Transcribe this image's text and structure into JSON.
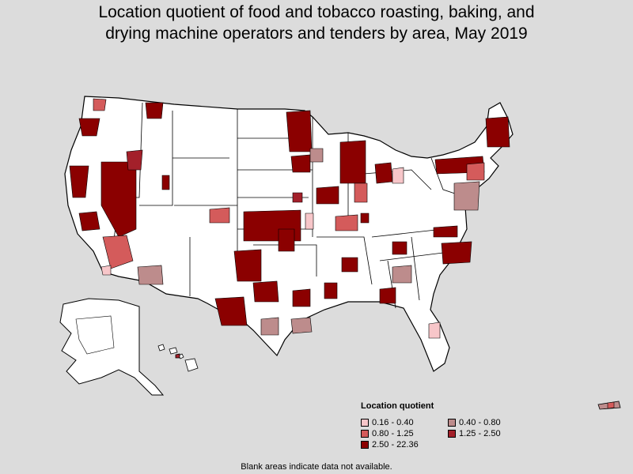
{
  "title": {
    "line1": "Location quotient of food and tobacco roasting, baking, and",
    "line2": "drying machine operators and tenders by area, May 2019"
  },
  "legend": {
    "title": "Location quotient",
    "items": [
      {
        "label": "0.16 - 0.40",
        "color": "#f7c6c9"
      },
      {
        "label": "0.40 - 0.80",
        "color": "#bd8c8c"
      },
      {
        "label": "0.80 - 1.25",
        "color": "#d45b5b"
      },
      {
        "label": "1.25 - 2.50",
        "color": "#a3202a"
      },
      {
        "label": "2.50 - 22.36",
        "color": "#8b0000"
      }
    ]
  },
  "footnote": "Blank areas indicate data not available.",
  "colors": {
    "background": "#dcdcdc",
    "no_data": "#ffffff",
    "border": "#000000"
  }
}
